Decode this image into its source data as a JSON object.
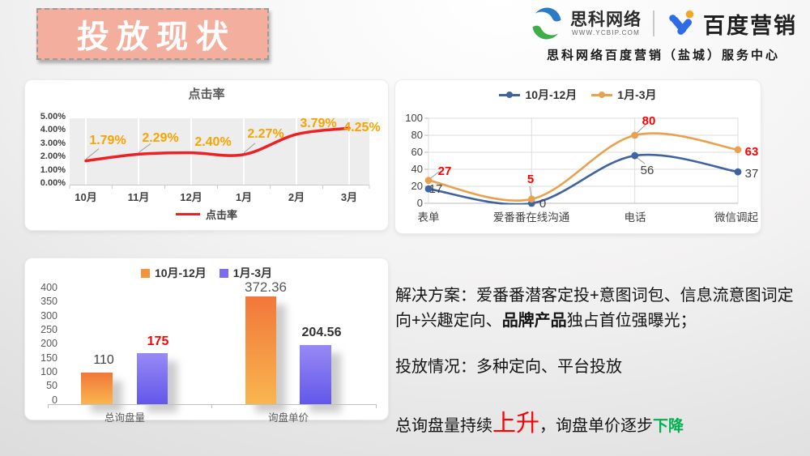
{
  "title_banner": {
    "text": "投放现状"
  },
  "header": {
    "brand1": {
      "name": "思科网络",
      "url": "WWW.YCBIP.COM"
    },
    "brand2": {
      "name": "百度营销"
    },
    "subtitle": "思科网络百度营销（盐城）服务中心"
  },
  "colors": {
    "banner_bg": "#f4ae9d",
    "click_line_red": "#ed2024",
    "click_label_orange": "#f7a400",
    "series_blue": "#3f63a0",
    "series_orange": "#e8a14f",
    "highlight_red": "#ff0000",
    "highlight_green": "#00b050"
  },
  "chart_data": [
    {
      "type": "line",
      "title": "点击率",
      "categories": [
        "10月",
        "11月",
        "12月",
        "1月",
        "2月",
        "3月"
      ],
      "series": [
        {
          "name": "点击率",
          "color": "#ed2024",
          "values": [
            1.79,
            2.29,
            2.4,
            2.27,
            3.79,
            4.25
          ]
        }
      ],
      "value_labels": [
        "1.79%",
        "2.29%",
        "2.40%",
        "2.27%",
        "3.79%",
        "4.25%"
      ],
      "label_color": "#f7a400",
      "ytick_labels": [
        "5.00%",
        "4.00%",
        "3.00%",
        "2.00%",
        "1.00%",
        "0.00%"
      ],
      "ylim": [
        0,
        5
      ],
      "grid": "white vertical lines on gray plot band",
      "legend_position": "bottom"
    },
    {
      "type": "line",
      "title": "",
      "categories": [
        "表单",
        "爱番番在线沟通",
        "电话",
        "微信调起"
      ],
      "series": [
        {
          "name": "10月-12月",
          "color": "#3f63a0",
          "values": [
            17,
            0,
            56,
            37
          ],
          "value_labels": [
            "17",
            "0",
            "56",
            "37"
          ],
          "label_color": "#404040"
        },
        {
          "name": "1月-3月",
          "color": "#e8a14f",
          "values": [
            27,
            5,
            80,
            63
          ],
          "value_labels": [
            "27",
            "5",
            "80",
            "63"
          ],
          "label_color": "#ff0000"
        }
      ],
      "ytick_labels": [
        "100",
        "80",
        "60",
        "40",
        "20",
        "0"
      ],
      "ylim": [
        0,
        100
      ],
      "grid": "on",
      "legend_position": "top"
    },
    {
      "type": "bar",
      "title": "",
      "categories": [
        "总询盘量",
        "询盘单价"
      ],
      "series": [
        {
          "name": "10月-12月",
          "values": [
            110,
            372.36
          ],
          "value_labels": [
            "110",
            "372.36"
          ],
          "color_top": "#f1773a",
          "color_bottom": "#f9b64f",
          "legend_color": "#f0953d"
        },
        {
          "name": "1月-3月",
          "values": [
            175,
            204.56
          ],
          "value_labels": [
            "175",
            "204.56"
          ],
          "color_top": "#988af4",
          "color_bottom": "#6257ea",
          "legend_color": "#7b6cf0"
        }
      ],
      "ytick_labels": [
        "400",
        "350",
        "300",
        "250",
        "200",
        "150",
        "100",
        "50",
        "0"
      ],
      "ylim": [
        0,
        400
      ],
      "grid": "off",
      "legend_position": "top",
      "highlighted_value_label": "175"
    }
  ],
  "solution": {
    "p1_pre": "解决方案：爱番番潜客定投+意图词包、信息流意图词定向+兴趣定向、",
    "p1_bold": "品牌产品",
    "p1_post": "独占首位强曝光；",
    "p2": "投放情况：多种定向、平台投放",
    "p3_pre": "总询盘量持续",
    "p3_up": "上升",
    "p3_mid": "，询盘单价逐步",
    "p3_down": "下降"
  }
}
